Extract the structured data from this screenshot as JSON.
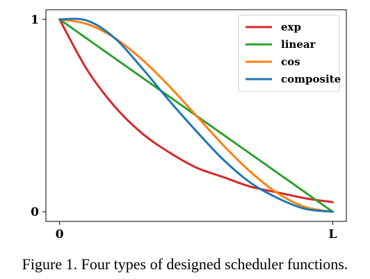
{
  "caption": "Figure 1. Four types of designed scheduler functions.",
  "chart_data": {
    "type": "line",
    "title": "",
    "xlabel": "",
    "ylabel": "",
    "x_ticks": [
      "0",
      "L"
    ],
    "y_ticks": [
      "0",
      "1"
    ],
    "xlim": [
      -0.05,
      1.05
    ],
    "ylim": [
      -0.05,
      1.05
    ],
    "grid": false,
    "legend_position": "top-right",
    "x": [
      0,
      0.1,
      0.2,
      0.3,
      0.4,
      0.5,
      0.6,
      0.7,
      0.8,
      0.9,
      1.0
    ],
    "series": [
      {
        "name": "exp",
        "color": "#d62728",
        "values": [
          1.0,
          0.74,
          0.55,
          0.41,
          0.31,
          0.23,
          0.18,
          0.13,
          0.1,
          0.07,
          0.05
        ]
      },
      {
        "name": "linear",
        "color": "#2ca02c",
        "values": [
          1.0,
          0.9,
          0.8,
          0.7,
          0.6,
          0.5,
          0.4,
          0.3,
          0.2,
          0.1,
          0.0
        ]
      },
      {
        "name": "cos",
        "color": "#ff7f0e",
        "values": [
          1.0,
          0.976,
          0.905,
          0.794,
          0.655,
          0.5,
          0.345,
          0.206,
          0.095,
          0.024,
          0.0
        ]
      },
      {
        "name": "composite",
        "color": "#1f77b4",
        "values": [
          1.0,
          0.994,
          0.905,
          0.75,
          0.58,
          0.42,
          0.27,
          0.15,
          0.07,
          0.015,
          0.0
        ]
      }
    ]
  }
}
